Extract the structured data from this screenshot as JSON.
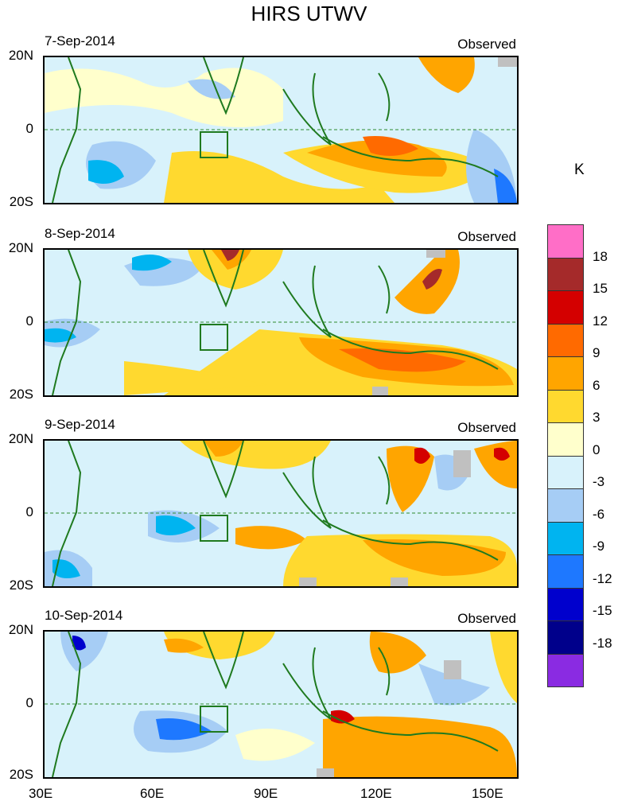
{
  "title": "HIRS UTWV",
  "panels": [
    {
      "date": "7-Sep-2014",
      "label": "Observed"
    },
    {
      "date": "8-Sep-2014",
      "label": "Observed"
    },
    {
      "date": "9-Sep-2014",
      "label": "Observed"
    },
    {
      "date": "10-Sep-2014",
      "label": "Observed"
    }
  ],
  "lat_labels": [
    "20N",
    "0",
    "20S"
  ],
  "lon_labels": [
    "30E",
    "60E",
    "90E",
    "120E",
    "150E"
  ],
  "colorbar": {
    "unit": "K",
    "labels": [
      "18",
      "15",
      "12",
      "9",
      "6",
      "3",
      "0",
      "-3",
      "-6",
      "-9",
      "-12",
      "-15",
      "-18"
    ],
    "colors": [
      "#ff6ec7",
      "#a52a2a",
      "#d40000",
      "#ff6a00",
      "#ffa500",
      "#ffd92f",
      "#ffffcc",
      "#d8f2fb",
      "#a6cdf5",
      "#00b4f0",
      "#1e78ff",
      "#0000cd",
      "#00008b",
      "#8a2be2"
    ]
  }
}
